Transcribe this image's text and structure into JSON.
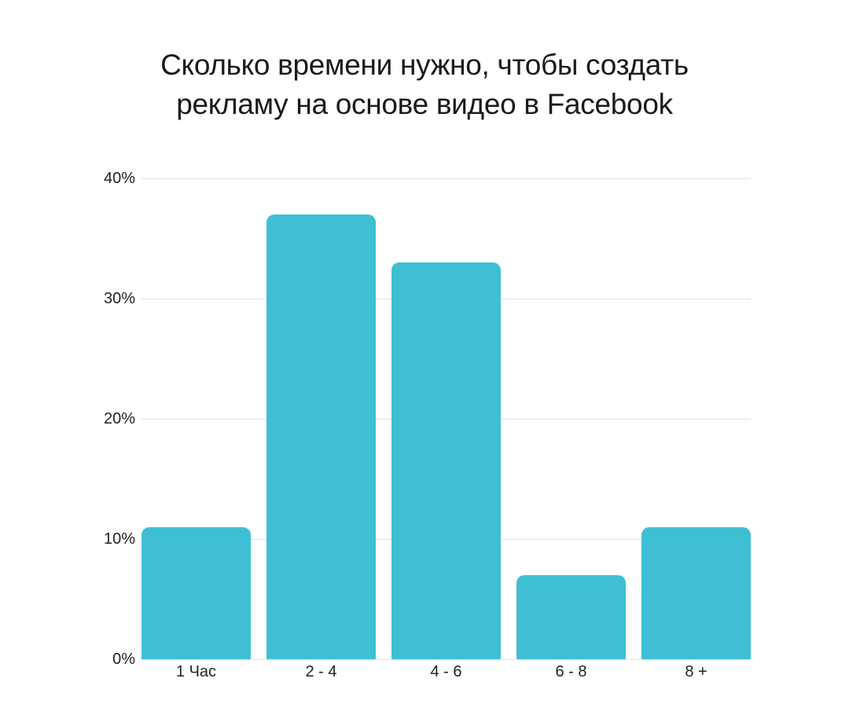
{
  "chart_data": {
    "type": "bar",
    "title": "Сколько времени нужно, чтобы создать рекламу на основе видео в Facebook",
    "title_lines": [
      "Сколько времени нужно, чтобы создать",
      "рекламу на основе видео в Facebook"
    ],
    "categories": [
      "1 Час",
      "2 - 4",
      "4 - 6",
      "6 - 8",
      "8 +"
    ],
    "values": [
      11,
      37,
      33,
      7,
      11
    ],
    "unit": "%",
    "xlabel": "",
    "ylabel": "",
    "ylim": [
      0,
      40
    ],
    "yticks": [
      "0%",
      "10%",
      "20%",
      "30%",
      "40%"
    ],
    "grid": true,
    "legend": null,
    "colors": {
      "bar": "#3fbfd4",
      "grid": "#e3e3e3",
      "text": "#1a1a1a"
    }
  }
}
